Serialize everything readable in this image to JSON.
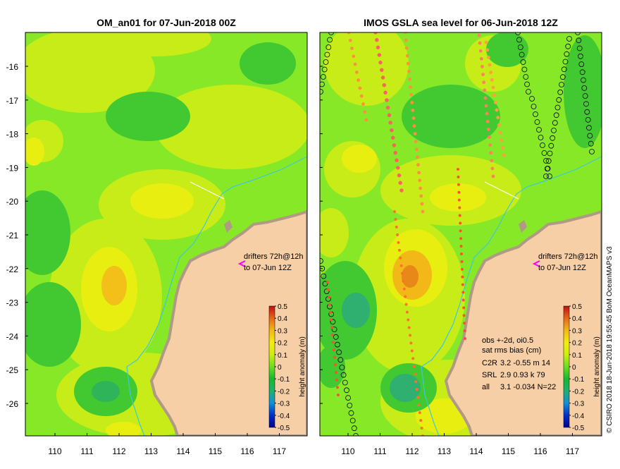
{
  "left_panel": {
    "title": "OM_an01 for 07-Jun-2018 00Z",
    "legend": {
      "line1": "drifters 72h@12h",
      "line2": "to 07-Jun 12Z"
    },
    "colorbar_label": "height anomaly (m)"
  },
  "right_panel": {
    "title": "IMOS GSLA sea level  for 06-Jun-2018 12Z",
    "legend": {
      "line1": "drifters 72h@12h",
      "line2": "to 07-Jun 12Z"
    },
    "stats": {
      "line1": "obs +-2d, oi0.5",
      "line2": "sat rms bias (cm)",
      "rows": [
        {
          "sat": "C2R",
          "vals": "3.2 -0.55 m 14"
        },
        {
          "sat": "SRL",
          "vals": "2.9 0.93 k 79"
        },
        {
          "sat": "all",
          "vals": "3.1 -0.034 N=22"
        }
      ]
    },
    "colorbar_label": "height anomaly (m)"
  },
  "lat_ticks": [
    "-16",
    "-17",
    "-18",
    "-19",
    "-20",
    "-21",
    "-22",
    "-23",
    "-24",
    "-25",
    "-26"
  ],
  "lon_ticks": [
    "110",
    "111",
    "112",
    "113",
    "114",
    "115",
    "116",
    "117"
  ],
  "colorbar_ticks": [
    "0.5",
    "0.4",
    "0.3",
    "0.2",
    "0.1",
    "0",
    "-0.1",
    "-0.2",
    "-0.3",
    "-0.4",
    "-0.5"
  ],
  "credit": "© CSIRO 2018  18-Jun-2018 19:55:45 BoM OceanMAPS v3",
  "colors": {
    "land": "#f7cfa6",
    "coast_fringe": "#b09a85",
    "ocean_base": "#86e826",
    "current_line": "#3cc8dc",
    "drifter_marker": "#ff00ff"
  }
}
